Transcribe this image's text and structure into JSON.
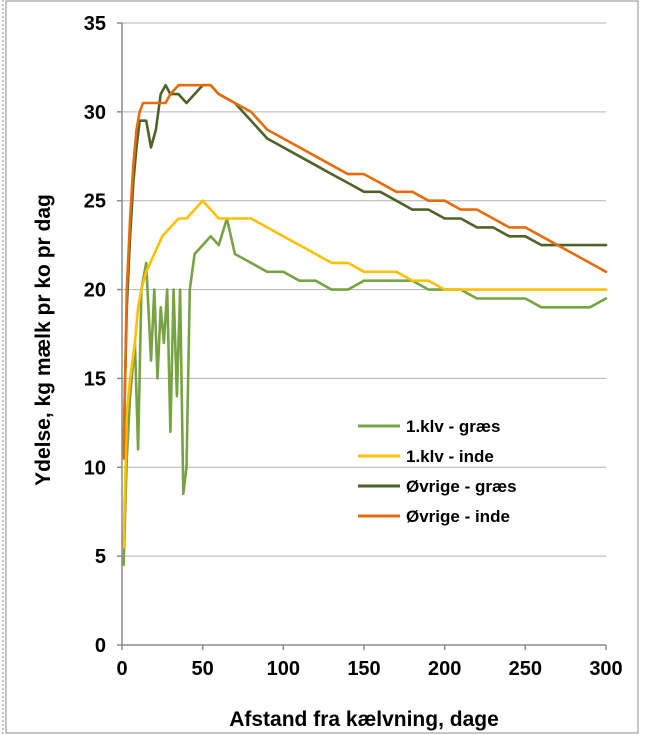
{
  "chart_data": {
    "type": "line",
    "title": "",
    "xlabel": "Afstand fra kælvning, dage",
    "ylabel": "Ydelse, kg mælk pr ko pr dag",
    "xlim": [
      0,
      300
    ],
    "ylim": [
      0,
      35
    ],
    "xticks": [
      0,
      50,
      100,
      150,
      200,
      250,
      300
    ],
    "yticks": [
      0,
      5,
      10,
      15,
      20,
      25,
      30,
      35
    ],
    "grid": "horizontal",
    "legend_position": "center-right",
    "series": [
      {
        "name": "1.klv - græs",
        "color": "#77a345",
        "x": [
          1,
          3,
          5,
          8,
          10,
          12,
          15,
          18,
          20,
          22,
          24,
          26,
          28,
          30,
          32,
          34,
          36,
          38,
          40,
          42,
          45,
          50,
          55,
          60,
          65,
          70,
          80,
          90,
          100,
          110,
          120,
          130,
          140,
          150,
          160,
          170,
          180,
          190,
          200,
          210,
          220,
          230,
          240,
          250,
          260,
          270,
          280,
          290,
          300
        ],
        "values": [
          4.5,
          10.5,
          14,
          17,
          11,
          20,
          21.5,
          16,
          20,
          15,
          19,
          17,
          20,
          12,
          20,
          14,
          20,
          8.5,
          10,
          20,
          22,
          22.5,
          23,
          22.5,
          24,
          22,
          21.5,
          21,
          21,
          20.5,
          20.5,
          20,
          20,
          20.5,
          20.5,
          20.5,
          20.5,
          20,
          20,
          20,
          19.5,
          19.5,
          19.5,
          19.5,
          19,
          19,
          19,
          19,
          19.5
        ]
      },
      {
        "name": "1.klv - inde",
        "color": "#ffc000",
        "x": [
          1,
          3,
          5,
          8,
          10,
          12,
          15,
          20,
          25,
          30,
          35,
          40,
          45,
          50,
          55,
          60,
          70,
          80,
          90,
          100,
          110,
          120,
          130,
          140,
          150,
          160,
          170,
          180,
          190,
          200,
          210,
          220,
          230,
          240,
          250,
          260,
          270,
          280,
          290,
          300
        ],
        "values": [
          5.5,
          13,
          15,
          17,
          19,
          20,
          21,
          22,
          23,
          23.5,
          24,
          24,
          24.5,
          25,
          24.5,
          24,
          24,
          24,
          23.5,
          23,
          22.5,
          22,
          21.5,
          21.5,
          21,
          21,
          21,
          20.5,
          20.5,
          20,
          20,
          20,
          20,
          20,
          20,
          20,
          20,
          20,
          20,
          20
        ]
      },
      {
        "name": "Øvrige - græs",
        "color": "#4f6228",
        "x": [
          1,
          3,
          5,
          7,
          9,
          11,
          13,
          15,
          18,
          21,
          24,
          27,
          30,
          35,
          40,
          45,
          50,
          55,
          60,
          70,
          80,
          90,
          100,
          110,
          120,
          130,
          140,
          150,
          160,
          170,
          180,
          190,
          200,
          210,
          220,
          230,
          240,
          250,
          260,
          270,
          280,
          290,
          300
        ],
        "values": [
          11,
          19,
          23,
          26,
          28,
          29.5,
          29.5,
          29.5,
          28,
          29,
          31,
          31.5,
          31,
          31,
          30.5,
          31,
          31.5,
          31.5,
          31,
          30.5,
          29.5,
          28.5,
          28,
          27.5,
          27,
          26.5,
          26,
          25.5,
          25.5,
          25,
          24.5,
          24.5,
          24,
          24,
          23.5,
          23.5,
          23,
          23,
          22.5,
          22.5,
          22.5,
          22.5,
          22.5
        ]
      },
      {
        "name": "Øvrige - inde",
        "color": "#e46c0a",
        "x": [
          1,
          3,
          5,
          7,
          9,
          11,
          13,
          15,
          18,
          21,
          24,
          27,
          30,
          35,
          40,
          45,
          50,
          55,
          60,
          70,
          80,
          90,
          100,
          110,
          120,
          130,
          140,
          150,
          160,
          170,
          180,
          190,
          200,
          210,
          220,
          230,
          240,
          250,
          260,
          270,
          280,
          290,
          300
        ],
        "values": [
          10.5,
          20,
          24,
          27,
          29,
          30,
          30.5,
          30.5,
          30.5,
          30.5,
          30.5,
          30.5,
          31,
          31.5,
          31.5,
          31.5,
          31.5,
          31.5,
          31,
          30.5,
          30,
          29,
          28.5,
          28,
          27.5,
          27,
          26.5,
          26.5,
          26,
          25.5,
          25.5,
          25,
          25,
          24.5,
          24.5,
          24,
          23.5,
          23.5,
          23,
          22.5,
          22,
          21.5,
          21
        ]
      }
    ]
  }
}
